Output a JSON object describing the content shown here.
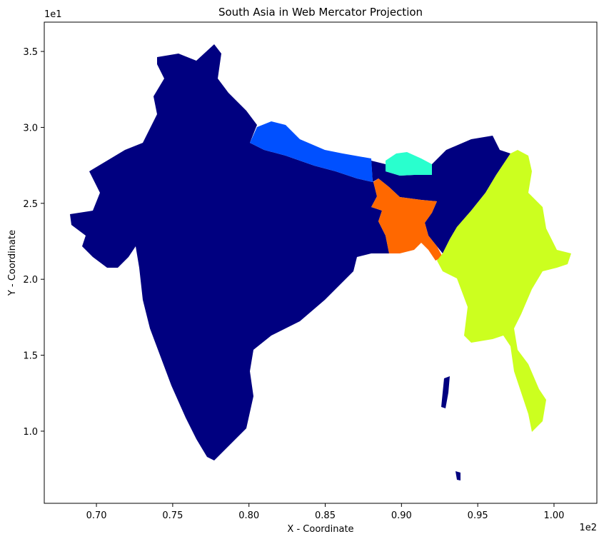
{
  "chart_data": {
    "type": "map",
    "title": "South Asia in Web Mercator Projection",
    "x_label": "X - Coordinate",
    "y_label": "Y - Coordinate",
    "x_offset_label": "1e2",
    "y_offset_label": "1e1",
    "xlim": [
      0.6658,
      1.0281
    ],
    "ylim": [
      0.525,
      3.693
    ],
    "xticks": [
      {
        "value": 0.7,
        "label": "0.70"
      },
      0.75,
      {
        "value": 0.8,
        "label": "0.80"
      },
      0.85,
      {
        "value": 0.9,
        "label": "0.90"
      },
      0.95,
      {
        "value": 1,
        "label": "1.00"
      }
    ],
    "yticks": [
      {
        "value": 1,
        "label": "1.0"
      },
      1.5,
      {
        "value": 2,
        "label": "2.0"
      },
      2.5,
      {
        "value": 3,
        "label": "3.0"
      },
      3.5
    ]
  }
}
